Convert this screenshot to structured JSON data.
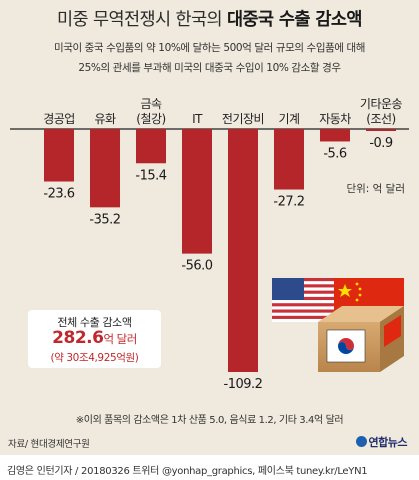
{
  "header": {
    "title_prefix": "미중 무역전쟁시 한국의 ",
    "title_bold": "대중국 수출 감소액",
    "desc_line1": "미국이 중국 수입품의 약 10%에 달하는 500억 달러 규모의 수입품에 대해",
    "desc_line2": "25%의 관세를 부과해 미국의 대중국 수입이 10% 감소할 경우"
  },
  "chart_data": {
    "type": "bar",
    "categories": [
      [
        "경공업"
      ],
      [
        "유화"
      ],
      [
        "금속",
        "(철강)"
      ],
      [
        "IT"
      ],
      [
        "전기장비"
      ],
      [
        "기계"
      ],
      [
        "자동차"
      ],
      [
        "기타운송",
        "(조선)"
      ]
    ],
    "values": [
      -23.6,
      -35.2,
      -15.4,
      -56.0,
      -109.2,
      -27.2,
      -5.6,
      -0.9
    ],
    "value_labels": [
      "-23.6",
      "-35.2",
      "-15.4",
      "-56.0",
      "-109.2",
      "-27.2",
      "-5.6",
      "-0.9"
    ],
    "ylim": [
      -109.2,
      0
    ],
    "unit_label": "단위: 억 달러",
    "bar_color": "#b5262b",
    "grid": false
  },
  "total": {
    "label": "전체 수출 감소액",
    "value": "282.6",
    "value_unit": "억 달러",
    "sub": "(약 30조4,925억원)"
  },
  "footnote": "※이외 품목의 감소액은 1차 산품 5.0, 음식료 1.2, 기타 3.4억 달러",
  "source": "자료/ 현대경제연구원",
  "logo": "연합뉴스",
  "credit": "김영은 인턴기자 / 20180326  트위터 @yonhap_graphics, 페이스북 tuney.kr/LeYN1"
}
